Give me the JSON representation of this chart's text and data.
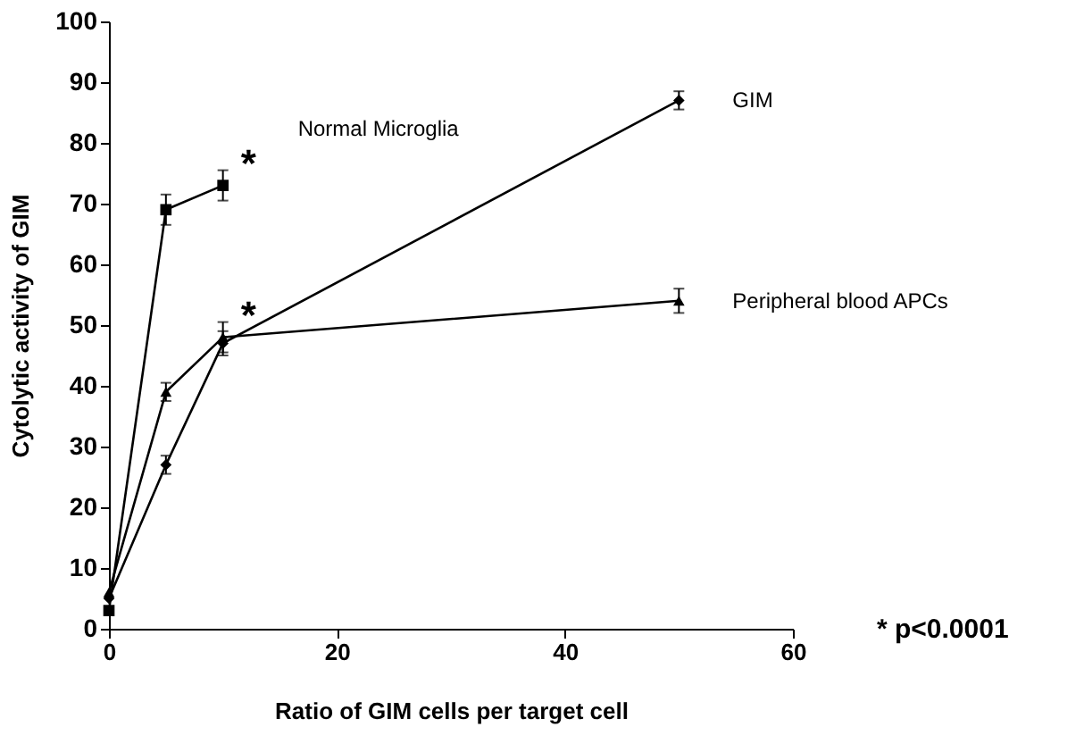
{
  "chart_data": {
    "type": "line",
    "xlabel": "Ratio of GIM cells per target cell",
    "ylabel": "Cytolytic activity of GIM",
    "xlim": [
      0,
      60
    ],
    "xticks": [
      0,
      20,
      40,
      60
    ],
    "ylim": [
      0,
      100
    ],
    "yticks": [
      0,
      10,
      20,
      30,
      40,
      50,
      60,
      70,
      80,
      90,
      100
    ],
    "grid": false,
    "line_style": "solid",
    "series": [
      {
        "name": "Normal Microglia",
        "color": "#000000",
        "marker": "square",
        "x": [
          0,
          5,
          10
        ],
        "values": [
          3,
          69,
          73
        ],
        "errors": [
          null,
          2.5,
          2.5
        ]
      },
      {
        "name": "GIM",
        "color": "#000000",
        "marker": "diamond",
        "x": [
          0,
          5,
          10,
          50
        ],
        "values": [
          5,
          27,
          47,
          87
        ],
        "errors": [
          null,
          1.5,
          2,
          1.5
        ]
      },
      {
        "name": "Peripheral blood APCs",
        "color": "#000000",
        "marker": "triangle",
        "x": [
          0,
          5,
          10,
          50
        ],
        "values": [
          6,
          39,
          48,
          54
        ],
        "errors": [
          null,
          1.5,
          2.5,
          2
        ]
      }
    ],
    "annotations": [
      {
        "text": "*",
        "x": 10,
        "y": 73
      },
      {
        "text": "*",
        "x": 10,
        "y": 48
      },
      "* p<0.0001"
    ]
  }
}
